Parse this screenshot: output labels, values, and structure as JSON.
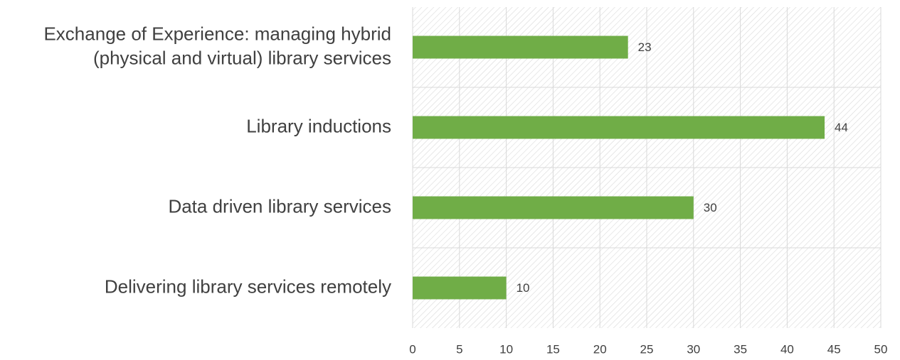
{
  "chart_data": {
    "type": "bar",
    "orientation": "horizontal",
    "categories": [
      "Exchange of Experience: managing hybrid\n(physical and virtual) library services",
      "Library inductions",
      "Data driven library services",
      "Delivering library services remotely"
    ],
    "values": [
      23,
      44,
      30,
      10
    ],
    "color": "#70ad47",
    "xlim": [
      0,
      50
    ],
    "xticks": [
      0,
      5,
      10,
      15,
      20,
      25,
      30,
      35,
      40,
      45,
      50
    ],
    "grid": true
  }
}
